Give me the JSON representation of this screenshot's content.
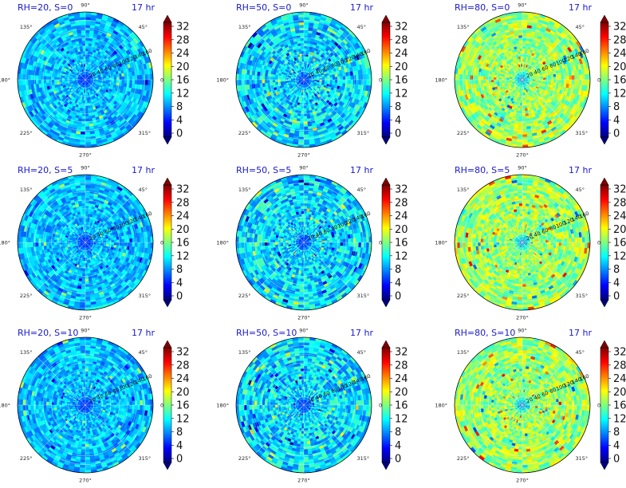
{
  "figure": {
    "grid": {
      "rows": 3,
      "cols": 3
    }
  },
  "colorscale": {
    "name": "jet",
    "stops": [
      "#00007f",
      "#0000ff",
      "#007fff",
      "#00ffff",
      "#7fff7f",
      "#ffff00",
      "#ff7f00",
      "#ff0000",
      "#7f0000"
    ]
  },
  "chart_data": [
    {
      "type": "heatmap",
      "polar": true,
      "title": "RH=20, S=0",
      "time_label": "17 hr",
      "angle_ticks": [
        "90°",
        "45°",
        "0°",
        "315°",
        "270°",
        "225°",
        "180°",
        "135°"
      ],
      "radial_ticks": [
        "20",
        "40",
        "60",
        "80",
        "100",
        "120",
        "140",
        "160"
      ],
      "radial_range": [
        0,
        160
      ],
      "colorbar": {
        "ticks": [
          "0",
          "4",
          "8",
          "12",
          "16",
          "20",
          "24",
          "28",
          "32"
        ],
        "range": [
          0,
          32
        ],
        "extend": "both"
      },
      "approx_mean": 10,
      "approx_spread": 3,
      "center_value": 2
    },
    {
      "type": "heatmap",
      "polar": true,
      "title": "RH=50, S=0",
      "time_label": "17 hr",
      "angle_ticks": [
        "90°",
        "45°",
        "0°",
        "315°",
        "270°",
        "225°",
        "180°",
        "135°"
      ],
      "radial_ticks": [
        "20",
        "40",
        "60",
        "80",
        "100",
        "120",
        "140",
        "160"
      ],
      "radial_range": [
        0,
        160
      ],
      "colorbar": {
        "ticks": [
          "0",
          "4",
          "8",
          "12",
          "16",
          "20",
          "24",
          "28",
          "32"
        ],
        "range": [
          0,
          32
        ],
        "extend": "both"
      },
      "approx_mean": 11,
      "approx_spread": 4,
      "center_value": 2
    },
    {
      "type": "heatmap",
      "polar": true,
      "title": "RH=80, S=0",
      "time_label": "17 hr",
      "angle_ticks": [
        "90°",
        "45°",
        "0°",
        "315°",
        "270°",
        "225°",
        "180°",
        "135°"
      ],
      "radial_ticks": [
        "20",
        "40",
        "60",
        "80",
        "100",
        "120",
        "140",
        "160"
      ],
      "radial_range": [
        0,
        160
      ],
      "colorbar": {
        "ticks": [
          "0",
          "4",
          "8",
          "12",
          "16",
          "20",
          "24",
          "28",
          "32"
        ],
        "range": [
          0,
          32
        ],
        "extend": "both"
      },
      "approx_mean": 17,
      "approx_spread": 4,
      "center_value": 6
    },
    {
      "type": "heatmap",
      "polar": true,
      "title": "RH=20, S=5",
      "time_label": "17 hr",
      "angle_ticks": [
        "90°",
        "45°",
        "0°",
        "315°",
        "270°",
        "225°",
        "180°",
        "135°"
      ],
      "radial_ticks": [
        "20",
        "40",
        "60",
        "80",
        "100",
        "120",
        "140",
        "160"
      ],
      "radial_range": [
        0,
        160
      ],
      "colorbar": {
        "ticks": [
          "0",
          "4",
          "8",
          "12",
          "16",
          "20",
          "24",
          "28",
          "32"
        ],
        "range": [
          0,
          32
        ],
        "extend": "both"
      },
      "approx_mean": 10,
      "approx_spread": 3,
      "center_value": 2
    },
    {
      "type": "heatmap",
      "polar": true,
      "title": "RH=50, S=5",
      "time_label": "17 hr",
      "angle_ticks": [
        "90°",
        "45°",
        "0°",
        "315°",
        "270°",
        "225°",
        "180°",
        "135°"
      ],
      "radial_ticks": [
        "20",
        "40",
        "60",
        "80",
        "100",
        "120",
        "140",
        "160"
      ],
      "radial_range": [
        0,
        160
      ],
      "colorbar": {
        "ticks": [
          "0",
          "4",
          "8",
          "12",
          "16",
          "20",
          "24",
          "28",
          "32"
        ],
        "range": [
          0,
          32
        ],
        "extend": "both"
      },
      "approx_mean": 11,
      "approx_spread": 4,
      "center_value": 2
    },
    {
      "type": "heatmap",
      "polar": true,
      "title": "RH=80, S=5",
      "time_label": "17 hr",
      "angle_ticks": [
        "90°",
        "45°",
        "0°",
        "315°",
        "270°",
        "225°",
        "180°",
        "135°"
      ],
      "radial_ticks": [
        "20",
        "40",
        "60",
        "80",
        "100",
        "120",
        "140",
        "160"
      ],
      "radial_range": [
        0,
        160
      ],
      "colorbar": {
        "ticks": [
          "0",
          "4",
          "8",
          "12",
          "16",
          "20",
          "24",
          "28",
          "32"
        ],
        "range": [
          0,
          32
        ],
        "extend": "both"
      },
      "approx_mean": 17,
      "approx_spread": 4,
      "center_value": 6
    },
    {
      "type": "heatmap",
      "polar": true,
      "title": "RH=20, S=10",
      "time_label": "17 hr",
      "angle_ticks": [
        "90°",
        "45°",
        "0°",
        "315°",
        "270°",
        "225°",
        "180°",
        "135°"
      ],
      "radial_ticks": [
        "20",
        "40",
        "60",
        "80",
        "100",
        "120",
        "140",
        "160"
      ],
      "radial_range": [
        0,
        160
      ],
      "colorbar": {
        "ticks": [
          "0",
          "4",
          "8",
          "12",
          "16",
          "20",
          "24",
          "28",
          "32"
        ],
        "range": [
          0,
          32
        ],
        "extend": "both"
      },
      "approx_mean": 10,
      "approx_spread": 3,
      "center_value": 2
    },
    {
      "type": "heatmap",
      "polar": true,
      "title": "RH=50, S=10",
      "time_label": "17 hr",
      "angle_ticks": [
        "90°",
        "45°",
        "0°",
        "315°",
        "270°",
        "225°",
        "180°",
        "135°"
      ],
      "radial_ticks": [
        "20",
        "40",
        "60",
        "80",
        "100",
        "120",
        "140",
        "160"
      ],
      "radial_range": [
        0,
        160
      ],
      "colorbar": {
        "ticks": [
          "0",
          "4",
          "8",
          "12",
          "16",
          "20",
          "24",
          "28",
          "32"
        ],
        "range": [
          0,
          32
        ],
        "extend": "both"
      },
      "approx_mean": 11,
      "approx_spread": 4,
      "center_value": 2
    },
    {
      "type": "heatmap",
      "polar": true,
      "title": "RH=80, S=10",
      "time_label": "17 hr",
      "angle_ticks": [
        "90°",
        "45°",
        "0°",
        "315°",
        "270°",
        "225°",
        "180°",
        "135°"
      ],
      "radial_ticks": [
        "20",
        "40",
        "60",
        "80",
        "100",
        "120",
        "140",
        "160"
      ],
      "radial_range": [
        0,
        160
      ],
      "colorbar": {
        "ticks": [
          "0",
          "4",
          "8",
          "12",
          "16",
          "20",
          "24",
          "28",
          "32"
        ],
        "range": [
          0,
          32
        ],
        "extend": "both"
      },
      "approx_mean": 17,
      "approx_spread": 4,
      "center_value": 6
    }
  ]
}
